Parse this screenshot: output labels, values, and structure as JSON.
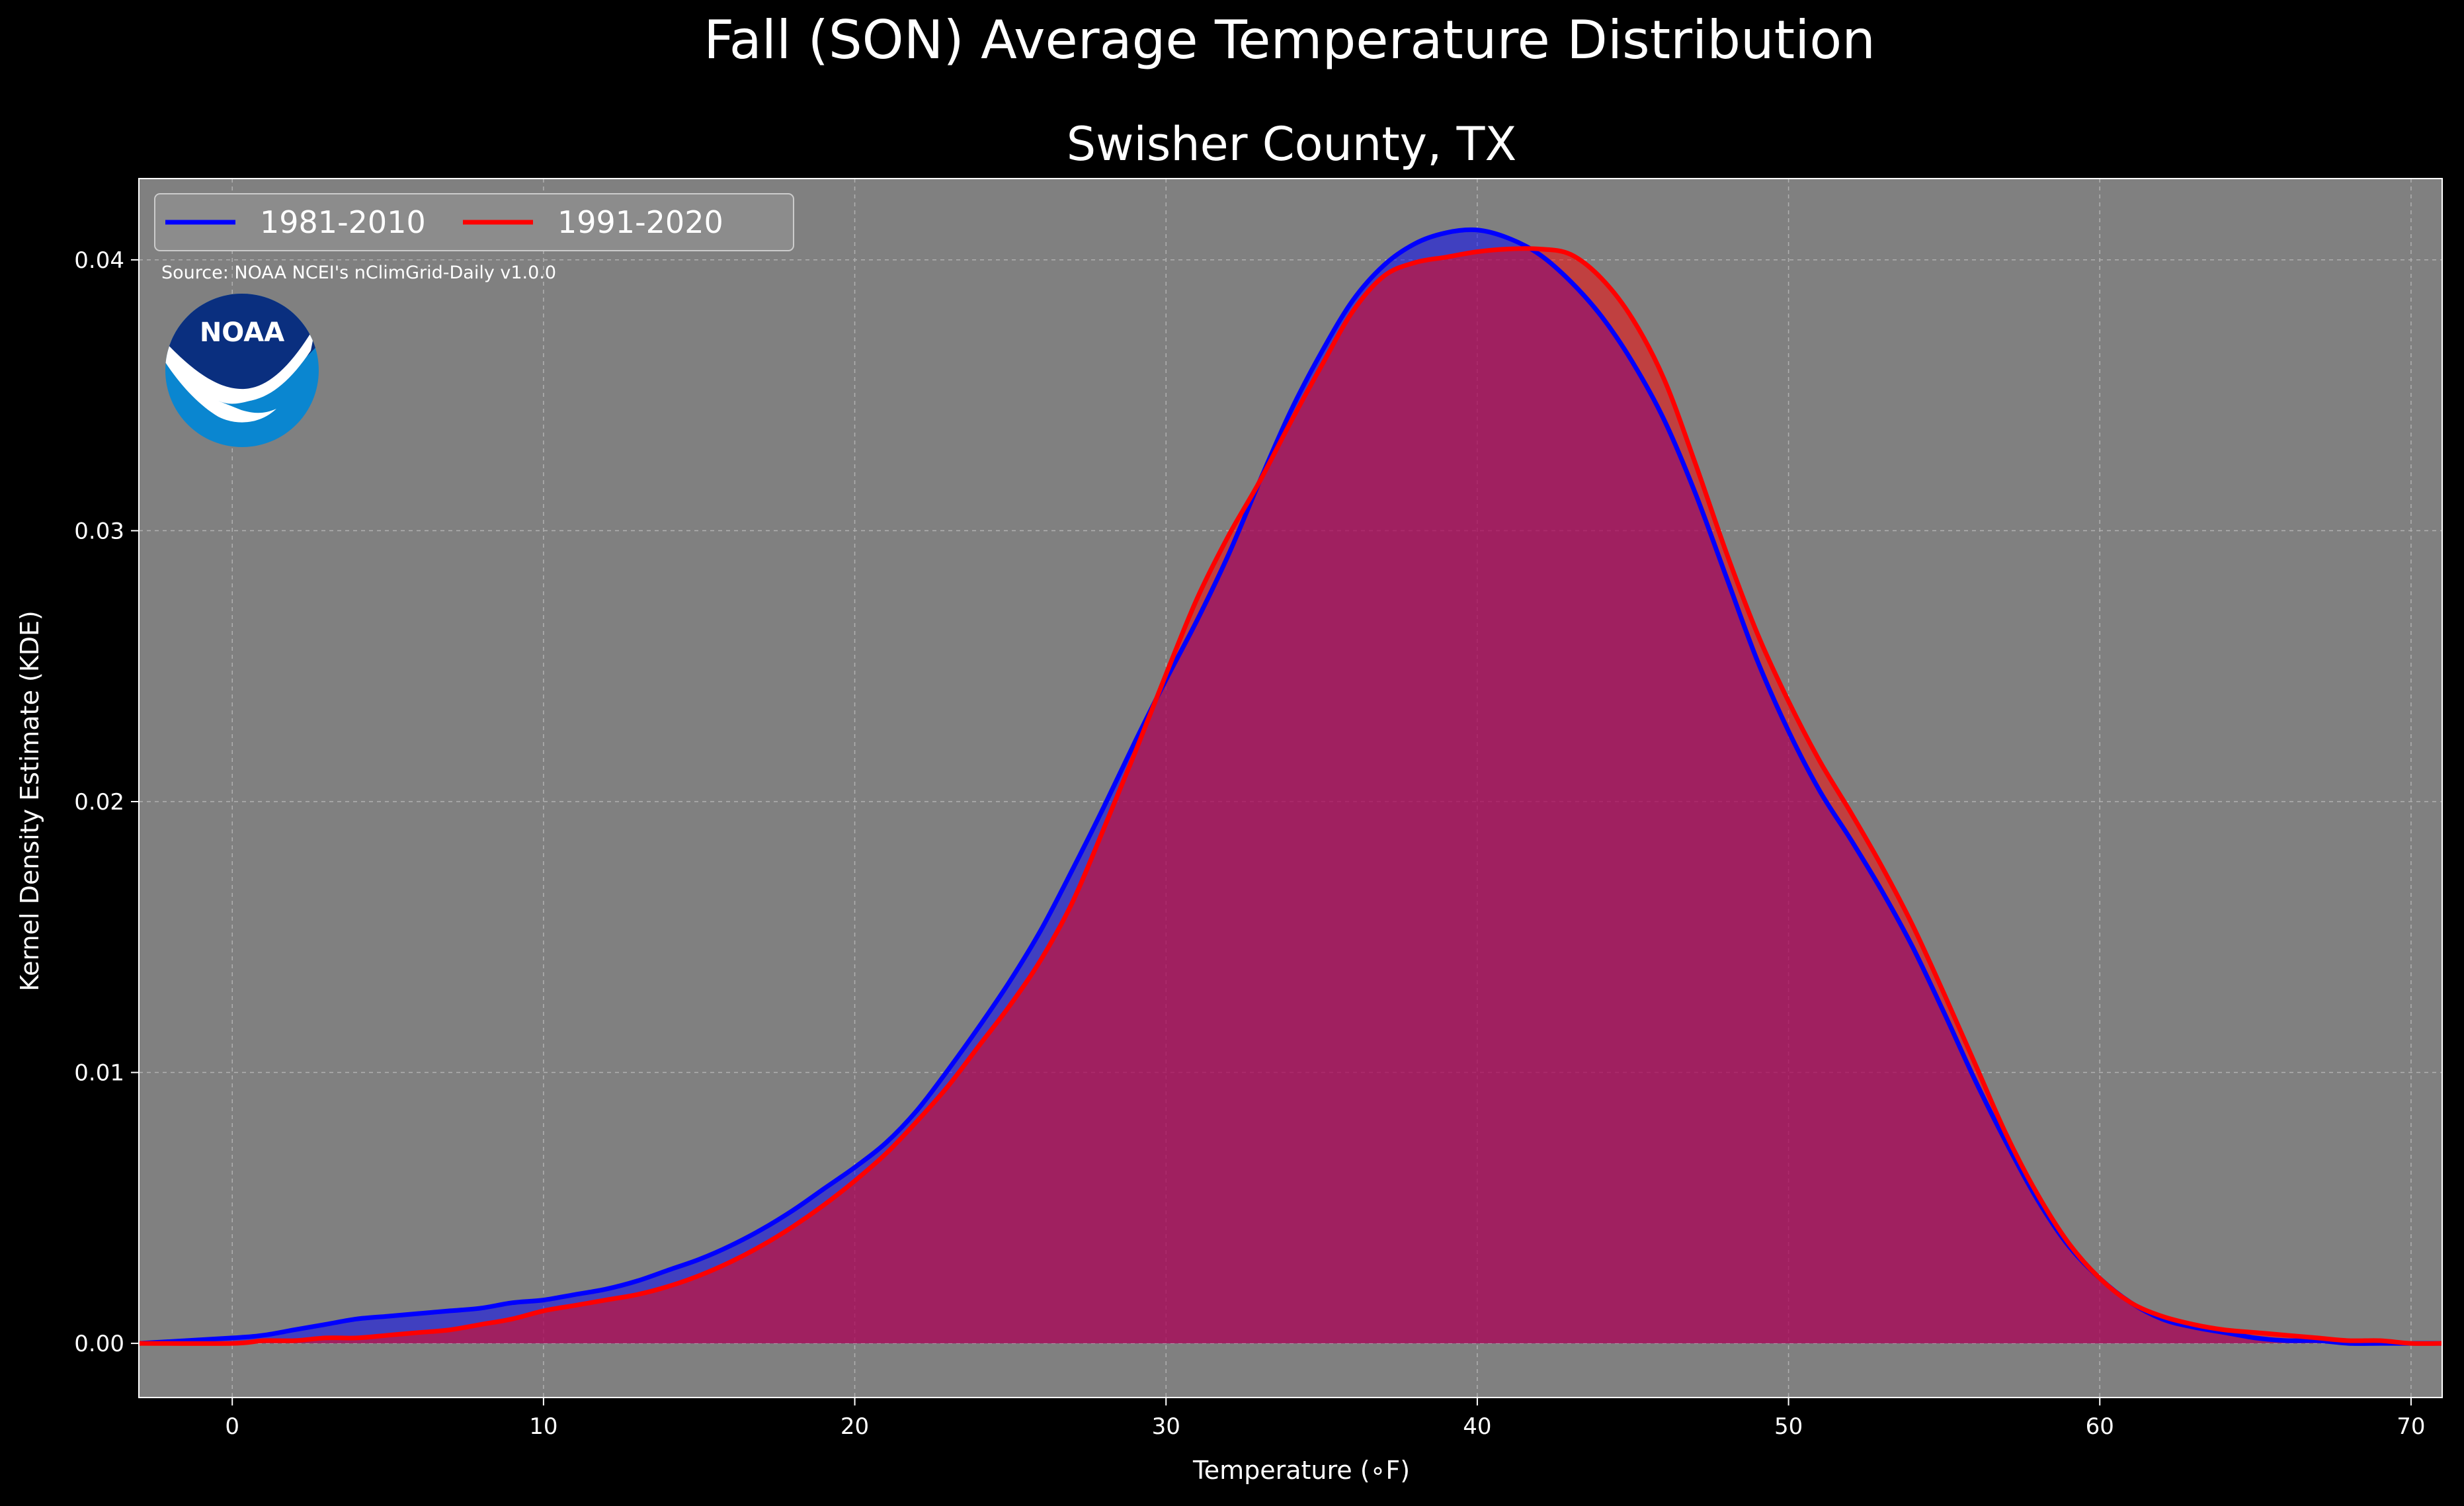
{
  "chart_data": {
    "type": "area",
    "title": "Fall (SON) Average Temperature Distribution",
    "subtitle": "Swisher County, TX",
    "xlabel": "Temperature ($^\\circ$F)",
    "xlabel_display": "Temperature (∘F)",
    "ylabel": "Kernel Density Estimate (KDE)",
    "xlim": [
      -3,
      71
    ],
    "ylim": [
      -0.002,
      0.043
    ],
    "xticks": [
      0,
      10,
      20,
      30,
      40,
      50,
      60,
      70
    ],
    "xtick_labels": [
      "0",
      "10",
      "20",
      "30",
      "40",
      "50",
      "60",
      "70"
    ],
    "yticks": [
      0.0,
      0.01,
      0.02,
      0.03,
      0.04
    ],
    "ytick_labels": [
      "0.00",
      "0.01",
      "0.02",
      "0.03",
      "0.04"
    ],
    "grid": true,
    "legend_placement": "top-left",
    "source_note": "Source: NOAA NCEI's nClimGrid-Daily v1.0.0",
    "logo_text": "NOAA",
    "colors": {
      "background": "#000000",
      "plot_background": "#808080",
      "series_1981": "#0000ff",
      "series_1991": "#ff0000",
      "text": "#ffffff",
      "logo_dark": "#0a2f7f",
      "logo_light": "#0a86d0"
    },
    "series": [
      {
        "name": "1981-2010",
        "color": "#0000ff",
        "x": [
          -3,
          0,
          1,
          2,
          3,
          4,
          5,
          6,
          7,
          8,
          9,
          10,
          11,
          12,
          13,
          14,
          15,
          16,
          17,
          18,
          19,
          20,
          21,
          22,
          23,
          24,
          25,
          26,
          27,
          28,
          29,
          30,
          31,
          32,
          33,
          34,
          35,
          36,
          37,
          38,
          39,
          40,
          41,
          42,
          43,
          44,
          45,
          46,
          47,
          48,
          49,
          50,
          51,
          52,
          53,
          54,
          55,
          56,
          57,
          58,
          59,
          60,
          61,
          62,
          63,
          64,
          65,
          66,
          67,
          68,
          69,
          70,
          71
        ],
        "y": [
          0.0,
          0.0002,
          0.0003,
          0.0005,
          0.0007,
          0.0009,
          0.001,
          0.0011,
          0.0012,
          0.0013,
          0.0015,
          0.0016,
          0.0018,
          0.002,
          0.0023,
          0.0027,
          0.0031,
          0.0036,
          0.0042,
          0.0049,
          0.0057,
          0.0065,
          0.0074,
          0.0086,
          0.0101,
          0.0117,
          0.0134,
          0.0153,
          0.0175,
          0.0198,
          0.0222,
          0.0245,
          0.0267,
          0.0291,
          0.0318,
          0.0344,
          0.0366,
          0.0385,
          0.0398,
          0.0406,
          0.041,
          0.0411,
          0.0408,
          0.0402,
          0.0392,
          0.0379,
          0.0362,
          0.0341,
          0.0314,
          0.0283,
          0.0252,
          0.0226,
          0.0204,
          0.0186,
          0.0167,
          0.0146,
          0.0122,
          0.0097,
          0.0074,
          0.0053,
          0.0036,
          0.0024,
          0.0015,
          0.0009,
          0.0006,
          0.0004,
          0.0002,
          0.0001,
          0.0001,
          0.0,
          0.0,
          0.0,
          0.0
        ]
      },
      {
        "name": "1991-2020",
        "color": "#ff0000",
        "x": [
          -3,
          0,
          1,
          2,
          3,
          4,
          5,
          6,
          7,
          8,
          9,
          10,
          11,
          12,
          13,
          14,
          15,
          16,
          17,
          18,
          19,
          20,
          21,
          22,
          23,
          24,
          25,
          26,
          27,
          28,
          29,
          30,
          31,
          32,
          33,
          34,
          35,
          36,
          37,
          38,
          39,
          40,
          41,
          42,
          43,
          44,
          45,
          46,
          47,
          48,
          49,
          50,
          51,
          52,
          53,
          54,
          55,
          56,
          57,
          58,
          59,
          60,
          61,
          62,
          63,
          64,
          65,
          66,
          67,
          68,
          69,
          70,
          71
        ],
        "y": [
          0.0,
          0.0,
          0.0001,
          0.0001,
          0.0002,
          0.0002,
          0.0003,
          0.0004,
          0.0005,
          0.0007,
          0.0009,
          0.0012,
          0.0014,
          0.0016,
          0.0018,
          0.0021,
          0.0025,
          0.003,
          0.0036,
          0.0043,
          0.0051,
          0.006,
          0.007,
          0.0082,
          0.0095,
          0.011,
          0.0125,
          0.0142,
          0.0163,
          0.019,
          0.0218,
          0.0247,
          0.0275,
          0.0298,
          0.0318,
          0.034,
          0.0361,
          0.0381,
          0.0394,
          0.0399,
          0.0401,
          0.0403,
          0.0404,
          0.0404,
          0.0402,
          0.0393,
          0.0378,
          0.0356,
          0.0325,
          0.0292,
          0.0262,
          0.0237,
          0.0215,
          0.0196,
          0.0176,
          0.0154,
          0.0129,
          0.0103,
          0.0077,
          0.0055,
          0.0037,
          0.0024,
          0.0015,
          0.001,
          0.0007,
          0.0005,
          0.0004,
          0.0003,
          0.0002,
          0.0001,
          0.0001,
          0.0,
          0.0
        ]
      }
    ]
  }
}
